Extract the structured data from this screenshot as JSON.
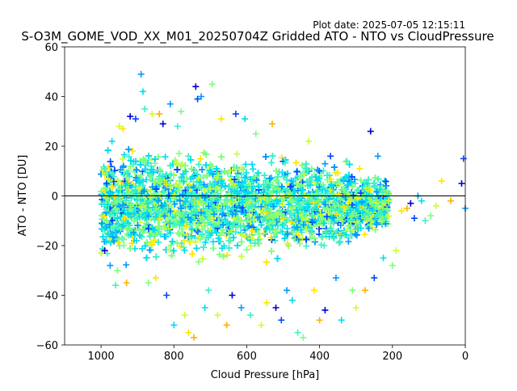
{
  "plot_date": "Plot date: 2025-07-05 12:15:11",
  "chart_data": {
    "type": "scatter",
    "title": "S-O3M_GOME_VOD_XX_M01_20250704Z Gridded ATO - NTO vs CloudPressure",
    "xlabel": "Cloud Pressure [hPa]",
    "ylabel": "ATO - NTO [DU]",
    "xlim": [
      1100,
      0
    ],
    "ylim": [
      -60,
      60
    ],
    "x_inverted": true,
    "xticks": [
      1000,
      800,
      600,
      400,
      200,
      0
    ],
    "yticks": [
      -60,
      -40,
      -20,
      0,
      20,
      40,
      60
    ],
    "reference_line_y": 0,
    "marker": "+",
    "grid": false,
    "legend": "none",
    "colors": [
      "#0000cd",
      "#0044ff",
      "#0099ff",
      "#00dcf0",
      "#3cf0c8",
      "#7dff7a",
      "#c8ff37",
      "#ffe600",
      "#ffb000"
    ],
    "series": [
      {
        "description_color": "#3cf0c8",
        "points": [
          [
            990,
            -22
          ],
          [
            985,
            5
          ],
          [
            975,
            -28
          ],
          [
            970,
            22
          ],
          [
            960,
            -36
          ],
          [
            955,
            -30
          ],
          [
            950,
            28
          ],
          [
            940,
            27
          ],
          [
            930,
            -35
          ],
          [
            920,
            32
          ],
          [
            905,
            31
          ],
          [
            890,
            49
          ],
          [
            885,
            42
          ],
          [
            880,
            35
          ],
          [
            870,
            -35
          ],
          [
            860,
            33
          ],
          [
            850,
            -33
          ],
          [
            840,
            33
          ],
          [
            830,
            29
          ],
          [
            820,
            -40
          ],
          [
            810,
            37
          ],
          [
            800,
            -52
          ],
          [
            790,
            28
          ],
          [
            780,
            34
          ],
          [
            770,
            -48
          ],
          [
            760,
            -55
          ],
          [
            745,
            -57
          ],
          [
            740,
            44
          ],
          [
            735,
            39
          ],
          [
            725,
            40
          ],
          [
            715,
            -45
          ],
          [
            705,
            -38
          ],
          [
            695,
            45
          ],
          [
            680,
            -48
          ],
          [
            670,
            31
          ],
          [
            655,
            -52
          ],
          [
            640,
            -40
          ],
          [
            630,
            33
          ],
          [
            615,
            -45
          ],
          [
            605,
            31
          ],
          [
            590,
            -48
          ],
          [
            575,
            25
          ],
          [
            560,
            -52
          ],
          [
            545,
            -43
          ],
          [
            530,
            29
          ],
          [
            520,
            -45
          ],
          [
            505,
            -50
          ],
          [
            490,
            -38
          ],
          [
            475,
            -42
          ],
          [
            460,
            -55
          ],
          [
            445,
            -57
          ],
          [
            430,
            22
          ],
          [
            415,
            -38
          ],
          [
            400,
            -50
          ],
          [
            385,
            -46
          ],
          [
            370,
            16
          ],
          [
            355,
            -33
          ],
          [
            340,
            -50
          ],
          [
            325,
            14
          ],
          [
            310,
            -38
          ],
          [
            300,
            -45
          ],
          [
            290,
            11
          ],
          [
            275,
            -38
          ],
          [
            260,
            26
          ],
          [
            250,
            -33
          ],
          [
            240,
            16
          ],
          [
            225,
            -25
          ],
          [
            210,
            1
          ],
          [
            200,
            -28
          ],
          [
            190,
            -22
          ],
          [
            175,
            -6
          ],
          [
            160,
            -5
          ],
          [
            150,
            -3
          ],
          [
            140,
            -9
          ],
          [
            130,
            0
          ],
          [
            120,
            -2
          ],
          [
            110,
            -10
          ],
          [
            95,
            -8
          ],
          [
            80,
            -4
          ],
          [
            65,
            6
          ],
          [
            40,
            -2
          ],
          [
            10,
            5
          ],
          [
            5,
            15
          ],
          [
            0,
            -5
          ]
        ]
      }
    ]
  }
}
